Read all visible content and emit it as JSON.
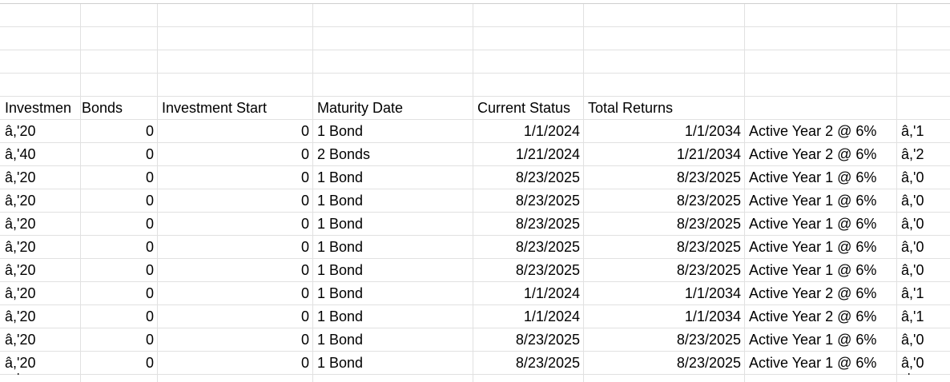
{
  "sheet": {
    "header": {
      "col_a": "Investmen",
      "col_b": "Bonds",
      "col_c": "Investment Start",
      "col_d": "Maturity Date",
      "col_e": "Current Status",
      "col_f": "Total Returns"
    },
    "rows": [
      {
        "a": "â,'20",
        "b": "0",
        "c": "0",
        "d": "1 Bond",
        "e": "1/1/2024",
        "f": "1/1/2034",
        "g": "Active Year 2 @ 6%",
        "h": "â,'1"
      },
      {
        "a": "â,'40",
        "b": "0",
        "c": "0",
        "d": "2 Bonds",
        "e": "1/21/2024",
        "f": "1/21/2034",
        "g": "Active Year 2 @ 6%",
        "h": "â,'2"
      },
      {
        "a": "â,'20",
        "b": "0",
        "c": "0",
        "d": "1 Bond",
        "e": "8/23/2025",
        "f": "8/23/2025",
        "g": "Active Year 1 @ 6%",
        "h": "â,'0"
      },
      {
        "a": "â,'20",
        "b": "0",
        "c": "0",
        "d": "1 Bond",
        "e": "8/23/2025",
        "f": "8/23/2025",
        "g": "Active Year 1 @ 6%",
        "h": "â,'0"
      },
      {
        "a": "â,'20",
        "b": "0",
        "c": "0",
        "d": "1 Bond",
        "e": "8/23/2025",
        "f": "8/23/2025",
        "g": "Active Year 1 @ 6%",
        "h": "â,'0"
      },
      {
        "a": "â,'20",
        "b": "0",
        "c": "0",
        "d": "1 Bond",
        "e": "8/23/2025",
        "f": "8/23/2025",
        "g": "Active Year 1 @ 6%",
        "h": "â,'0"
      },
      {
        "a": "â,'20",
        "b": "0",
        "c": "0",
        "d": "1 Bond",
        "e": "8/23/2025",
        "f": "8/23/2025",
        "g": "Active Year 1 @ 6%",
        "h": "â,'0"
      },
      {
        "a": "â,'20",
        "b": "0",
        "c": "0",
        "d": "1 Bond",
        "e": "1/1/2024",
        "f": "1/1/2034",
        "g": "Active Year 2 @ 6%",
        "h": "â,'1"
      },
      {
        "a": "â,'20",
        "b": "0",
        "c": "0",
        "d": "1 Bond",
        "e": "1/1/2024",
        "f": "1/1/2034",
        "g": "Active Year 2 @ 6%",
        "h": "â,'1"
      },
      {
        "a": "â,'20",
        "b": "0",
        "c": "0",
        "d": "1 Bond",
        "e": "8/23/2025",
        "f": "8/23/2025",
        "g": "Active Year 1 @ 6%",
        "h": "â,'0"
      },
      {
        "a": "â,'20",
        "b": "0",
        "c": "0",
        "d": "1 Bond",
        "e": "8/23/2025",
        "f": "8/23/2025",
        "g": "Active Year 1 @ 6%",
        "h": "â,'0"
      }
    ],
    "partial_row": {
      "a": "'",
      "h": "'"
    }
  }
}
